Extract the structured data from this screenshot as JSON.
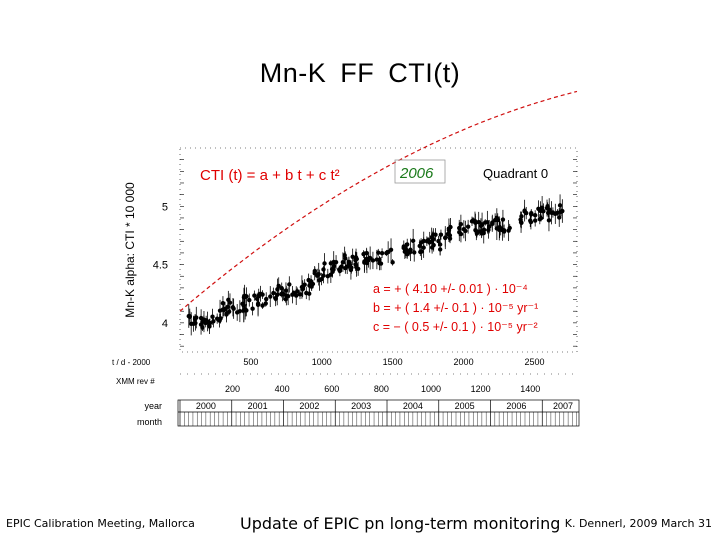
{
  "slide": {
    "title": "Mn-K   FF  CTI(t)",
    "footer_left": "EPIC Calibration Meeting, Mallorca",
    "footer_center": "Update of EPIC pn long-term monitoring",
    "footer_right": "K. Dennerl, 2009 March 31"
  },
  "chart_data": {
    "type": "scatter",
    "ylabel": "Mn-K  alpha:  CTI * 10 000",
    "ylim": [
      3.75,
      5.5
    ],
    "yticks": [
      4,
      4.5,
      5
    ],
    "xlim": [
      0,
      2800
    ],
    "fit_label": "CTI (t)  =  a + b t + c t²",
    "year_badge": "2006",
    "quadrant_label": "Quadrant 0",
    "coefficients": [
      "a  =  + ( 4.10 +/-  0.01 ) · 10⁻⁴",
      "b  =  + ( 1.4 +/- 0.1 ) · 10⁻⁵  yr⁻¹",
      "c  =  − ( 0.5 +/- 0.1 ) · 10⁻⁵  yr⁻²"
    ],
    "fit": {
      "a": 4.1,
      "b": 0.38,
      "c": -0.05
    },
    "colors": {
      "fit_text": "#e00000",
      "fit_line": "#d01010",
      "badge_text": "#1a7a1a",
      "points": "#000000"
    },
    "axes": [
      {
        "label": "t / d - 2000",
        "ticks": [
          500,
          1000,
          1500,
          2000,
          2500
        ],
        "tick_labels": [
          "500",
          "1000",
          "1500",
          "2000",
          "2500"
        ]
      },
      {
        "label": "XMM rev #",
        "ticks": [
          200,
          400,
          600,
          800,
          1000,
          1200,
          1400
        ],
        "tick_labels": [
          "200",
          "400",
          "600",
          "800",
          "1000",
          "1200",
          "1400"
        ]
      },
      {
        "label": "year",
        "ticks": [
          2000,
          2001,
          2002,
          2003,
          2004,
          2005,
          2006,
          2007
        ],
        "tick_labels": [
          "2000",
          "2001",
          "2002",
          "2003",
          "2004",
          "2005",
          "2006",
          "2007"
        ]
      },
      {
        "label": "month"
      }
    ],
    "clusters": [
      {
        "x": [
          50,
          290
        ],
        "y": 4.02
      },
      {
        "x": [
          300,
          640
        ],
        "y": 4.17
      },
      {
        "x": [
          650,
          940
        ],
        "y": 4.28
      },
      {
        "x": [
          950,
          1150
        ],
        "y": 4.45
      },
      {
        "x": [
          1160,
          1500
        ],
        "y": 4.55
      },
      {
        "x": [
          1550,
          1850
        ],
        "y": 4.67
      },
      {
        "x": [
          1870,
          2150
        ],
        "y": 4.8
      },
      {
        "x": [
          2150,
          2330
        ],
        "y": 4.84
      },
      {
        "x": [
          2400,
          2700
        ],
        "y": 4.93
      }
    ]
  }
}
